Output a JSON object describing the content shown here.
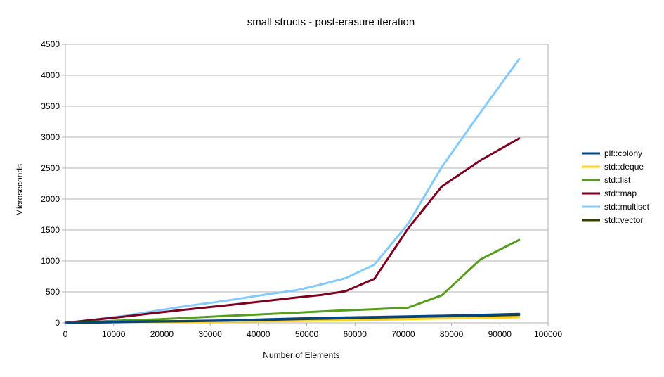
{
  "chart_data": {
    "type": "line",
    "title": "small structs - post-erasure iteration",
    "xlabel": "Number of Elements",
    "ylabel": "Microseconds",
    "xlim": [
      0,
      100000
    ],
    "ylim": [
      0,
      4500
    ],
    "xticks": [
      0,
      10000,
      20000,
      30000,
      40000,
      50000,
      60000,
      70000,
      80000,
      90000,
      100000
    ],
    "yticks": [
      0,
      500,
      1000,
      1500,
      2000,
      2500,
      3000,
      3500,
      4000,
      4500
    ],
    "grid": "horizontal",
    "legend_position": "right",
    "series": [
      {
        "name": "plf::colony",
        "color": "#004586",
        "x": [
          0,
          6000,
          12000,
          18000,
          25000,
          33000,
          40000,
          48000,
          56000,
          64000,
          71000,
          78000,
          86000,
          94000
        ],
        "y": [
          0,
          10,
          20,
          25,
          30,
          40,
          55,
          70,
          85,
          95,
          105,
          115,
          130,
          145
        ]
      },
      {
        "name": "std::deque",
        "color": "#ffd320",
        "x": [
          0,
          6000,
          12000,
          18000,
          25000,
          33000,
          40000,
          48000,
          56000,
          64000,
          71000,
          78000,
          86000,
          94000
        ],
        "y": [
          0,
          5,
          8,
          12,
          15,
          20,
          25,
          32,
          40,
          50,
          60,
          70,
          80,
          90
        ]
      },
      {
        "name": "std::list",
        "color": "#579d1c",
        "x": [
          0,
          6000,
          12000,
          18000,
          25000,
          33000,
          40000,
          48000,
          56000,
          64000,
          71000,
          78000,
          86000,
          94000
        ],
        "y": [
          0,
          20,
          40,
          55,
          80,
          110,
          135,
          165,
          195,
          220,
          245,
          445,
          1025,
          1340
        ]
      },
      {
        "name": "std::map",
        "color": "#7e0021",
        "x": [
          0,
          6000,
          12000,
          18000,
          25000,
          33000,
          40000,
          48000,
          53000,
          58000,
          64000,
          71000,
          78000,
          86000,
          94000
        ],
        "y": [
          0,
          50,
          100,
          155,
          215,
          280,
          340,
          410,
          450,
          510,
          710,
          1525,
          2205,
          2625,
          2980
        ]
      },
      {
        "name": "std::multiset",
        "color": "#83caff",
        "x": [
          0,
          6000,
          12000,
          18000,
          25000,
          33000,
          40000,
          48000,
          53000,
          58000,
          64000,
          71000,
          78000,
          86000,
          94000
        ],
        "y": [
          0,
          55,
          110,
          185,
          270,
          355,
          440,
          530,
          620,
          720,
          940,
          1600,
          2520,
          3400,
          4260
        ]
      },
      {
        "name": "std::vector",
        "color": "#314004",
        "x": [
          0,
          6000,
          12000,
          18000,
          25000,
          33000,
          40000,
          48000,
          56000,
          64000,
          71000,
          78000,
          86000,
          94000
        ],
        "y": [
          0,
          5,
          15,
          20,
          25,
          35,
          45,
          60,
          72,
          85,
          95,
          105,
          115,
          128
        ]
      }
    ]
  }
}
